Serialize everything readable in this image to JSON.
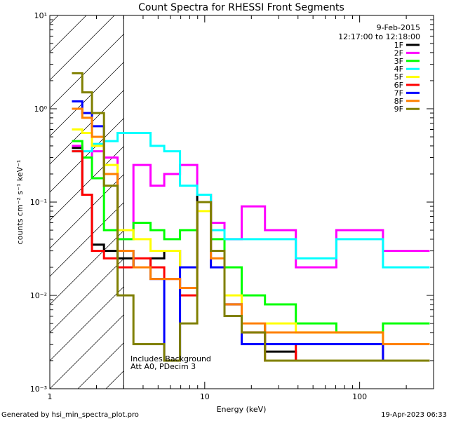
{
  "chart_data": {
    "type": "line",
    "title": "Count Spectra for RHESSI Front Segments",
    "xlabel": "Energy (keV)",
    "ylabel": "counts cm⁻² s⁻¹ keV⁻¹",
    "xscale": "log",
    "yscale": "log",
    "xlim": [
      1,
      300
    ],
    "ylim": [
      0.001,
      10
    ],
    "x_ticks": [
      {
        "value": 1,
        "label": "1"
      },
      {
        "value": 10,
        "label": "10"
      },
      {
        "value": 100,
        "label": "100"
      }
    ],
    "y_ticks": [
      {
        "value": 0.001,
        "label": "10⁻³"
      },
      {
        "value": 0.01,
        "label": "10⁻²"
      },
      {
        "value": 0.1,
        "label": "10⁻¹"
      },
      {
        "value": 1,
        "label": "10⁰"
      },
      {
        "value": 10,
        "label": "10¹"
      }
    ],
    "date": "9-Feb-2015",
    "time_range": "12:17:00 to 12:18:00",
    "hatched_region": [
      1,
      3
    ],
    "annotations": [
      "Includes Background",
      "Att A0, PDecim 3"
    ],
    "legend_position": "top-right",
    "series": [
      {
        "name": "1F",
        "color": "#000000",
        "x": [
          1.5,
          1.75,
          2.0,
          2.5,
          3.0,
          4.0,
          5.0,
          6.0,
          8.0,
          10.0,
          12.0,
          15.0,
          20.0,
          30.0,
          50.0
        ],
        "y": [
          0.38,
          0.12,
          0.035,
          0.03,
          0.025,
          0.02,
          0.025,
          0.03,
          0.02,
          0.12,
          0.03,
          0.01,
          0.005,
          0.0025,
          0.002
        ]
      },
      {
        "name": "2F",
        "color": "#ff00ff",
        "x": [
          1.5,
          1.75,
          2.0,
          2.5,
          3.0,
          4.0,
          5.0,
          6.0,
          8.0,
          10.0,
          12.0,
          15.0,
          20.0,
          30.0,
          50.0,
          100.0,
          200.0
        ],
        "y": [
          0.4,
          0.3,
          0.35,
          0.3,
          0.05,
          0.25,
          0.15,
          0.2,
          0.25,
          0.12,
          0.06,
          0.04,
          0.09,
          0.05,
          0.02,
          0.05,
          0.03
        ]
      },
      {
        "name": "3F",
        "color": "#00ff00",
        "x": [
          1.5,
          1.75,
          2.0,
          2.5,
          3.0,
          4.0,
          5.0,
          6.0,
          8.0,
          10.0,
          12.0,
          15.0,
          20.0,
          30.0,
          50.0,
          100.0,
          200.0
        ],
        "y": [
          0.45,
          0.3,
          0.18,
          0.05,
          0.04,
          0.06,
          0.05,
          0.04,
          0.05,
          0.1,
          0.04,
          0.02,
          0.01,
          0.008,
          0.005,
          0.004,
          0.005
        ]
      },
      {
        "name": "4F",
        "color": "#00ffff",
        "x": [
          1.5,
          1.75,
          2.0,
          2.5,
          3.0,
          4.0,
          5.0,
          6.0,
          8.0,
          10.0,
          12.0,
          15.0,
          20.0,
          30.0,
          50.0,
          100.0,
          200.0
        ],
        "y": [
          0.35,
          0.35,
          0.42,
          0.45,
          0.55,
          0.55,
          0.4,
          0.35,
          0.15,
          0.12,
          0.05,
          0.04,
          0.04,
          0.04,
          0.025,
          0.04,
          0.02
        ]
      },
      {
        "name": "5F",
        "color": "#ffff00",
        "x": [
          1.5,
          1.75,
          2.0,
          2.5,
          3.0,
          4.0,
          5.0,
          6.0,
          8.0,
          10.0,
          12.0,
          15.0,
          20.0,
          30.0,
          50.0,
          100.0,
          200.0
        ],
        "y": [
          0.6,
          0.55,
          0.4,
          0.25,
          0.05,
          0.04,
          0.03,
          0.03,
          0.02,
          0.08,
          0.03,
          0.01,
          0.005,
          0.005,
          0.004,
          0.004,
          0.003
        ]
      },
      {
        "name": "6F",
        "color": "#ff0000",
        "x": [
          1.5,
          1.75,
          2.0,
          2.5,
          3.0,
          4.0,
          5.0,
          6.0,
          8.0,
          10.0,
          12.0,
          15.0,
          20.0,
          30.0,
          50.0,
          100.0,
          200.0
        ],
        "y": [
          0.35,
          0.12,
          0.03,
          0.025,
          0.02,
          0.025,
          0.02,
          0.015,
          0.01,
          0.1,
          0.02,
          0.008,
          0.004,
          0.002,
          0.003,
          0.003,
          0.002
        ]
      },
      {
        "name": "7F",
        "color": "#0000ff",
        "x": [
          1.5,
          1.75,
          2.0,
          2.5,
          3.0,
          4.0,
          5.0,
          6.0,
          8.0,
          10.0,
          12.0,
          15.0,
          20.0,
          30.0,
          50.0,
          100.0,
          200.0
        ],
        "y": [
          1.2,
          0.9,
          0.65,
          0.2,
          0.03,
          0.02,
          0.015,
          0.002,
          0.02,
          0.1,
          0.02,
          0.008,
          0.003,
          0.003,
          0.003,
          0.003,
          0.002
        ]
      },
      {
        "name": "8F",
        "color": "#ff8000",
        "x": [
          1.5,
          1.75,
          2.0,
          2.5,
          3.0,
          4.0,
          5.0,
          6.0,
          8.0,
          10.0,
          12.0,
          15.0,
          20.0,
          30.0,
          50.0,
          100.0,
          200.0
        ],
        "y": [
          1.0,
          0.8,
          0.5,
          0.2,
          0.03,
          0.02,
          0.015,
          0.015,
          0.012,
          0.1,
          0.025,
          0.008,
          0.005,
          0.004,
          0.004,
          0.004,
          0.003
        ]
      },
      {
        "name": "9F",
        "color": "#808000",
        "x": [
          1.5,
          1.75,
          2.0,
          2.5,
          3.0,
          4.0,
          5.0,
          6.0,
          8.0,
          10.0,
          12.0,
          15.0,
          20.0,
          30.0,
          50.0,
          100.0,
          200.0
        ],
        "y": [
          2.4,
          1.5,
          0.9,
          0.15,
          0.01,
          0.003,
          0.003,
          0.002,
          0.005,
          0.1,
          0.03,
          0.006,
          0.004,
          0.002,
          0.002,
          0.002,
          0.002
        ]
      }
    ]
  },
  "footer": {
    "left": "Generated by hsi_min_spectra_plot.pro",
    "right": "19-Apr-2023 06:33"
  }
}
